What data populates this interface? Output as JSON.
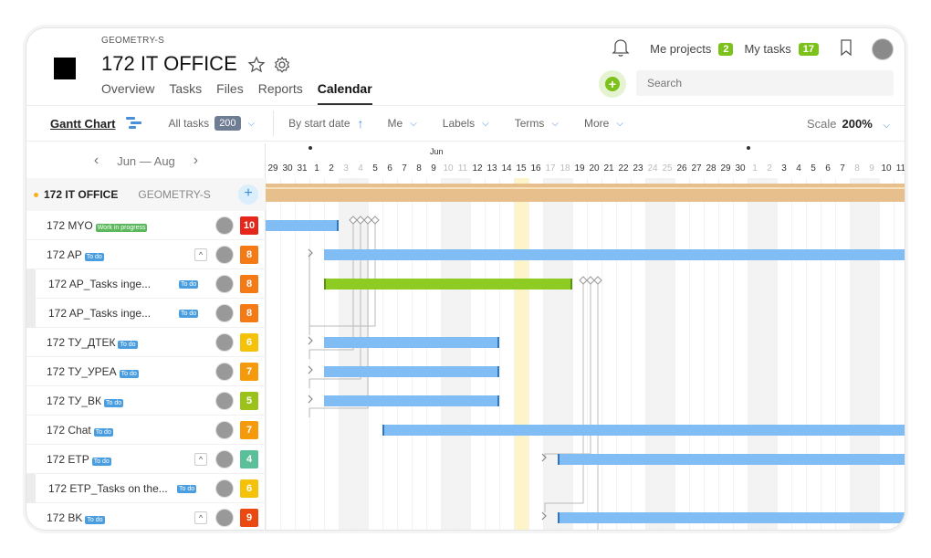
{
  "header": {
    "breadcrumb": "GEOMETRY-S",
    "title": "172 IT OFFICE",
    "tabs": [
      {
        "label": "Overview",
        "active": false
      },
      {
        "label": "Tasks",
        "active": false
      },
      {
        "label": "Files",
        "active": false
      },
      {
        "label": "Reports",
        "active": false
      },
      {
        "label": "Calendar",
        "active": true
      }
    ],
    "me_projects_label": "Me projects",
    "me_projects_count": "2",
    "my_tasks_label": "My tasks",
    "my_tasks_count": "17",
    "search_placeholder": "Search",
    "accent_color": "#7cc21b"
  },
  "toolbar": {
    "gantt_label": "Gantt Chart",
    "all_tasks_label": "All tasks",
    "all_tasks_count": "200",
    "sort_label": "By start date",
    "filters": [
      "Me",
      "Labels",
      "Terms",
      "More"
    ],
    "scale_label": "Scale",
    "scale_value": "200%"
  },
  "timeline": {
    "range_label": "Jun — Aug",
    "month_label": "Jun",
    "days": [
      "29",
      "30",
      "31",
      "1",
      "2",
      "3",
      "4",
      "5",
      "6",
      "7",
      "8",
      "9",
      "10",
      "11",
      "12",
      "13",
      "14",
      "15",
      "16",
      "17",
      "18",
      "19",
      "20",
      "21",
      "22",
      "23",
      "24",
      "25",
      "26",
      "27",
      "28",
      "29",
      "30",
      "1",
      "2",
      "3",
      "4",
      "5",
      "6",
      "7",
      "8",
      "9",
      "10",
      "11"
    ],
    "weekend_flags": [
      0,
      0,
      0,
      0,
      0,
      1,
      1,
      0,
      0,
      0,
      0,
      0,
      1,
      1,
      0,
      0,
      0,
      0,
      0,
      1,
      1,
      0,
      0,
      0,
      0,
      0,
      1,
      1,
      0,
      0,
      0,
      0,
      0,
      1,
      1,
      0,
      0,
      0,
      0,
      0,
      1,
      1,
      0,
      0
    ]
  },
  "project": {
    "name": "172 IT OFFICE",
    "tag": "GEOMETRY-S",
    "dot_color": "#f3b21b"
  },
  "tasks": [
    {
      "name": "172 MYO",
      "status": "Work in progress",
      "priority": "10",
      "prio_color": "#e5261a",
      "sub": false,
      "expander": false
    },
    {
      "name": "172 AP",
      "status": "To do",
      "priority": "8",
      "prio_color": "#f47a16",
      "sub": false,
      "expander": true
    },
    {
      "name": "172 AP_Tasks inge...",
      "status": "To do",
      "priority": "8",
      "prio_color": "#f47a16",
      "sub": true,
      "expander": false
    },
    {
      "name": "172 AP_Tasks inge...",
      "status": "To do",
      "priority": "8",
      "prio_color": "#f47a16",
      "sub": true,
      "expander": false
    },
    {
      "name": "172 ТУ_ДТЕК",
      "status": "To do",
      "priority": "6",
      "prio_color": "#f5c20a",
      "sub": false,
      "expander": false
    },
    {
      "name": "172 ТУ_УРЕА",
      "status": "To do",
      "priority": "7",
      "prio_color": "#f59a0b",
      "sub": false,
      "expander": false
    },
    {
      "name": "172 ТУ_ВК",
      "status": "To do",
      "priority": "5",
      "prio_color": "#9ac21b",
      "sub": false,
      "expander": false
    },
    {
      "name": "172 Chat",
      "status": "To do",
      "priority": "7",
      "prio_color": "#f59a0b",
      "sub": false,
      "expander": false
    },
    {
      "name": "172 ETP",
      "status": "To do",
      "priority": "4",
      "prio_color": "#5bbf9a",
      "sub": false,
      "expander": true
    },
    {
      "name": "172 ETP_Tasks on the...",
      "status": "To do",
      "priority": "6",
      "prio_color": "#f5c20a",
      "sub": true,
      "expander": false
    },
    {
      "name": "172 BK",
      "status": "To do",
      "priority": "9",
      "prio_color": "#ea4a12",
      "sub": false,
      "expander": true
    }
  ]
}
